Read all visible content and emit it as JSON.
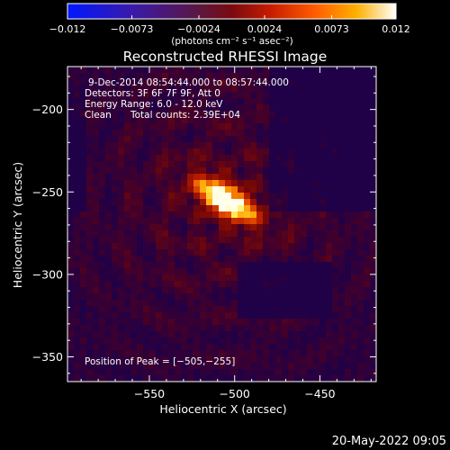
{
  "chart_data": {
    "type": "heatmap",
    "title": "Reconstructed RHESSI Image",
    "xlabel": "Heliocentric X (arcsec)",
    "ylabel": "Heliocentric Y (arcsec)",
    "xlim": [
      -598,
      -417
    ],
    "ylim": [
      -365,
      -174
    ],
    "xticks": [
      -550,
      -500,
      -450
    ],
    "xtick_labels": [
      "−550",
      "−500",
      "−450"
    ],
    "yticks": [
      -200,
      -250,
      -300,
      -350
    ],
    "ytick_labels": [
      "−200",
      "−250",
      "−300",
      "−350"
    ],
    "colorbar": {
      "min": -0.012,
      "max": 0.012,
      "ticks": [
        -0.012,
        -0.0073,
        -0.0024,
        0.0024,
        0.0073,
        0.012
      ],
      "tick_labels": [
        "−0.012",
        "−0.0073",
        "−0.0024",
        "0.0024",
        "0.0073",
        "0.012"
      ],
      "units_label": "(photons cm⁻² s⁻¹ asec⁻²)"
    },
    "peak": {
      "x": -505,
      "y": -255
    },
    "source_orientation_deg": 32,
    "annotations": {
      "time_range": "9-Dec-2014 08:54:44.000 to 08:57:44.000",
      "detectors": "Detectors: 3F 6F 7F 9F, Att 0",
      "energy_range": "Energy Range: 6.0 - 12.0 keV",
      "method": "Clean",
      "total_counts": "Total counts: 2.39E+04",
      "peak_position": "Position of Peak = [−505,−255]"
    }
  },
  "timestamp": "20-May-2022 09:05"
}
